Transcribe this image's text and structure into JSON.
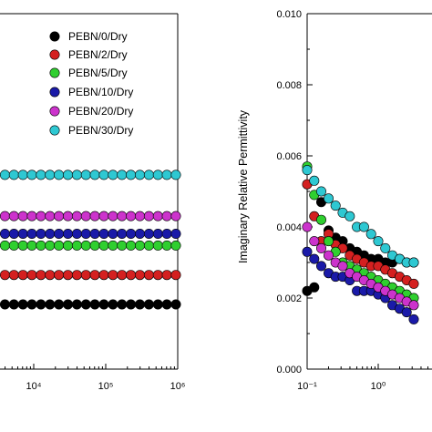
{
  "legend": [
    {
      "name": "PEBN/0/Dry",
      "color": "#000000"
    },
    {
      "name": "PEBN/2/Dry",
      "color": "#d42020"
    },
    {
      "name": "PEBN/5/Dry",
      "color": "#2fcf2f"
    },
    {
      "name": "PEBN/10/Dry",
      "color": "#1a1aa8"
    },
    {
      "name": "PEBN/20/Dry",
      "color": "#cc33cc"
    },
    {
      "name": "PEBN/30/Dry",
      "color": "#2ec8d2"
    }
  ],
  "chart_data": [
    {
      "type": "scatter",
      "title": "",
      "xlabel": "",
      "ylabel": "",
      "xscale": "log",
      "x_ticks": [
        "10⁴",
        "10⁵",
        "10⁶"
      ],
      "grid": false,
      "legend_position": "top-right",
      "series": [
        {
          "name": "PEBN/0/Dry",
          "color": "#000000",
          "y": 0.0
        },
        {
          "name": "PEBN/2/Dry",
          "color": "#d42020",
          "y": 1.0
        },
        {
          "name": "PEBN/5/Dry",
          "color": "#2fcf2f",
          "y": 2.0
        },
        {
          "name": "PEBN/10/Dry",
          "color": "#1a1aa8",
          "y": 2.4
        },
        {
          "name": "PEBN/20/Dry",
          "color": "#cc33cc",
          "y": 3.0
        },
        {
          "name": "PEBN/30/Dry",
          "color": "#2ec8d2",
          "y": 4.4
        }
      ]
    },
    {
      "type": "scatter",
      "title": "",
      "xlabel": "",
      "ylabel": "Imaginary Relative Permittivity",
      "xscale": "log",
      "x_ticks": [
        "10⁻¹",
        "10⁰"
      ],
      "y_ticks": [
        "0.000",
        "0.002",
        "0.004",
        "0.006",
        "0.008",
        "0.010"
      ],
      "ylim": [
        0.0,
        0.01
      ],
      "grid": false,
      "series": [
        {
          "name": "PEBN/0/Dry",
          "color": "#000000",
          "x": [
            0.1,
            0.126,
            0.158,
            0.2,
            0.251,
            0.316,
            0.398,
            0.501,
            0.631,
            0.794,
            1.0,
            1.26,
            1.58,
            2.0,
            2.51,
            3.16
          ],
          "y": [
            0.0022,
            0.0023,
            0.0047,
            0.0039,
            0.0037,
            0.0036,
            0.0034,
            0.0033,
            0.0032,
            0.0031,
            0.0031,
            0.003,
            0.003,
            0.0031,
            0.003,
            0.003
          ]
        },
        {
          "name": "PEBN/2/Dry",
          "color": "#d42020",
          "x": [
            0.1,
            0.126,
            0.158,
            0.2,
            0.251,
            0.316,
            0.398,
            0.501,
            0.631,
            0.794,
            1.0,
            1.26,
            1.58,
            2.0,
            2.51,
            3.16
          ],
          "y": [
            0.0052,
            0.0043,
            0.0036,
            0.0038,
            0.0035,
            0.0034,
            0.0032,
            0.0031,
            0.003,
            0.0029,
            0.0029,
            0.0028,
            0.0027,
            0.0026,
            0.0025,
            0.0024
          ]
        },
        {
          "name": "PEBN/5/Dry",
          "color": "#2fcf2f",
          "x": [
            0.1,
            0.126,
            0.158,
            0.2,
            0.251,
            0.316,
            0.398,
            0.501,
            0.631,
            0.794,
            1.0,
            1.26,
            1.58,
            2.0,
            2.51,
            3.16
          ],
          "y": [
            0.0057,
            0.0049,
            0.0042,
            0.0036,
            0.0033,
            0.003,
            0.0029,
            0.0028,
            0.0027,
            0.0026,
            0.0025,
            0.0024,
            0.0023,
            0.0022,
            0.0021,
            0.002
          ]
        },
        {
          "name": "PEBN/10/Dry",
          "color": "#1a1aa8",
          "x": [
            0.1,
            0.126,
            0.158,
            0.2,
            0.251,
            0.316,
            0.398,
            0.501,
            0.631,
            0.794,
            1.0,
            1.26,
            1.58,
            2.0,
            2.51,
            3.16
          ],
          "y": [
            0.0033,
            0.0031,
            0.0029,
            0.0027,
            0.0026,
            0.0026,
            0.0025,
            0.0022,
            0.0022,
            0.0022,
            0.0021,
            0.002,
            0.0018,
            0.0017,
            0.0016,
            0.0014
          ]
        },
        {
          "name": "PEBN/20/Dry",
          "color": "#cc33cc",
          "x": [
            0.1,
            0.126,
            0.158,
            0.2,
            0.251,
            0.316,
            0.398,
            0.501,
            0.631,
            0.794,
            1.0,
            1.26,
            1.58,
            2.0,
            2.51,
            3.16
          ],
          "y": [
            0.004,
            0.0036,
            0.0034,
            0.0032,
            0.003,
            0.0029,
            0.0027,
            0.0026,
            0.0025,
            0.0024,
            0.0023,
            0.0022,
            0.0021,
            0.002,
            0.0019,
            0.0018
          ]
        },
        {
          "name": "PEBN/30/Dry",
          "color": "#2ec8d2",
          "x": [
            0.1,
            0.126,
            0.158,
            0.2,
            0.251,
            0.316,
            0.398,
            0.501,
            0.631,
            0.794,
            1.0,
            1.26,
            1.58,
            2.0,
            2.51,
            3.16
          ],
          "y": [
            0.0056,
            0.0053,
            0.005,
            0.0048,
            0.0046,
            0.0044,
            0.0043,
            0.004,
            0.004,
            0.0038,
            0.0036,
            0.0034,
            0.0032,
            0.0031,
            0.003,
            0.003
          ]
        }
      ]
    }
  ]
}
